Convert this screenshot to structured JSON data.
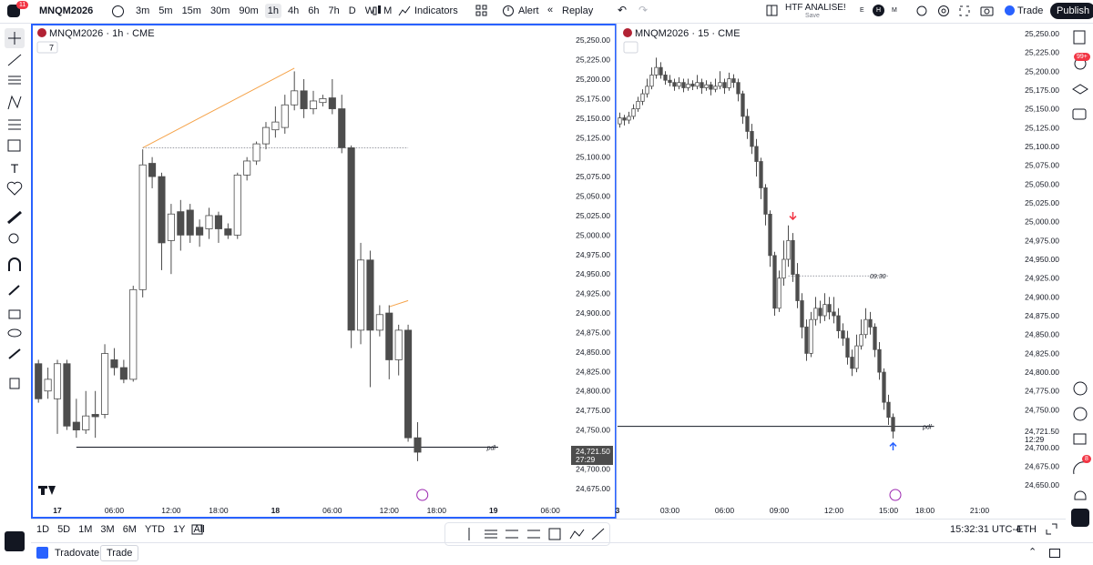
{
  "toolbar": {
    "notifications": "11",
    "symbol": "MNQM2026",
    "intervals": [
      "3m",
      "5m",
      "15m",
      "30m",
      "90m",
      "1h",
      "4h",
      "6h",
      "7h",
      "D",
      "W",
      "M"
    ],
    "selected_interval": "1h",
    "indicators": "Indicators",
    "alert": "Alert",
    "replay": "Replay",
    "layout_name": "HTF ANALISE!",
    "layout_status": "Save",
    "session_letters": [
      "E",
      "H",
      "M"
    ],
    "trade": "Trade",
    "publish": "Publish"
  },
  "sidebar": {
    "badges": [
      "99+",
      "8"
    ]
  },
  "chart_data": [
    {
      "type": "candlestick",
      "title": "MNQM2026 · 1h · CME",
      "button": "7",
      "up_color": "#ffffff",
      "down_color": "#4d4d4d",
      "wick_color": "#4d4d4d",
      "xlim": [
        -0.5,
        56
      ],
      "ylim": [
        24662,
        25270
      ],
      "xticks": [
        {
          "value": 2,
          "label": "17"
        },
        {
          "value": 8,
          "label": "06:00"
        },
        {
          "value": 14,
          "label": "12:00"
        },
        {
          "value": 19,
          "label": "18:00"
        },
        {
          "value": 25,
          "label": "18"
        },
        {
          "value": 31,
          "label": "06:00"
        },
        {
          "value": 37,
          "label": "12:00"
        },
        {
          "value": 42,
          "label": "18:00"
        },
        {
          "value": 48,
          "label": "19"
        },
        {
          "value": 54,
          "label": "06:00"
        }
      ],
      "yticks": [
        {
          "value": 25250,
          "label": "25,250.00"
        },
        {
          "value": 25225,
          "label": "25,225.00"
        },
        {
          "value": 25200,
          "label": "25,200.00"
        },
        {
          "value": 25175,
          "label": "25,175.00"
        },
        {
          "value": 25150,
          "label": "25,150.00"
        },
        {
          "value": 25125,
          "label": "25,125.00"
        },
        {
          "value": 25100,
          "label": "25,100.00"
        },
        {
          "value": 25075,
          "label": "25,075.00"
        },
        {
          "value": 25050,
          "label": "25,050.00"
        },
        {
          "value": 25025,
          "label": "25,025.00"
        },
        {
          "value": 25000,
          "label": "25,000.00"
        },
        {
          "value": 24975,
          "label": "24,975.00"
        },
        {
          "value": 24950,
          "label": "24,950.00"
        },
        {
          "value": 24925,
          "label": "24,925.00"
        },
        {
          "value": 24900,
          "label": "24,900.00"
        },
        {
          "value": 24875,
          "label": "24,875.00"
        },
        {
          "value": 24850,
          "label": "24,850.00"
        },
        {
          "value": 24825,
          "label": "24,825.00"
        },
        {
          "value": 24800,
          "label": "24,800.00"
        },
        {
          "value": 24775,
          "label": "24,775.00"
        },
        {
          "value": 24750,
          "label": "24,750.00"
        },
        {
          "value": 24725,
          "label": "24,725.00"
        },
        {
          "value": 24700,
          "label": "24,700.00"
        },
        {
          "value": 24675,
          "label": "24,675.00"
        }
      ],
      "ohlc": [
        [
          24835,
          24840,
          24785,
          24790
        ],
        [
          24800,
          24830,
          24790,
          24815
        ],
        [
          24790,
          24840,
          24745,
          24835
        ],
        [
          24835,
          24840,
          24750,
          24755
        ],
        [
          24760,
          24790,
          24740,
          24750
        ],
        [
          24750,
          24800,
          24745,
          24768
        ],
        [
          24770,
          24800,
          24740,
          24767
        ],
        [
          24770,
          24860,
          24765,
          24848
        ],
        [
          24840,
          24855,
          24820,
          24830
        ],
        [
          24830,
          24840,
          24810,
          24815
        ],
        [
          24815,
          24935,
          24812,
          24930
        ],
        [
          24930,
          25110,
          24920,
          25090
        ],
        [
          25092,
          25100,
          25060,
          25075
        ],
        [
          25075,
          25080,
          24955,
          24990
        ],
        [
          24993,
          25040,
          24950,
          25027
        ],
        [
          25030,
          25045,
          24980,
          25000
        ],
        [
          25032,
          25040,
          24990,
          25000
        ],
        [
          25010,
          25020,
          24985,
          25000
        ],
        [
          25008,
          25035,
          24995,
          25025
        ],
        [
          25025,
          25030,
          24990,
          25008
        ],
        [
          25008,
          25015,
          24995,
          25000
        ],
        [
          25000,
          25080,
          24995,
          25077
        ],
        [
          25077,
          25100,
          25070,
          25095
        ],
        [
          25095,
          25120,
          25090,
          25117
        ],
        [
          25117,
          25145,
          25110,
          25138
        ],
        [
          25135,
          25165,
          25125,
          25145
        ],
        [
          25138,
          25180,
          25130,
          25167
        ],
        [
          25167,
          25210,
          25160,
          25185
        ],
        [
          25185,
          25200,
          25150,
          25162
        ],
        [
          25162,
          25185,
          25155,
          25172
        ],
        [
          25170,
          25180,
          25165,
          25175
        ],
        [
          25176,
          25200,
          25155,
          25162
        ],
        [
          25162,
          25180,
          25105,
          25112
        ],
        [
          25112,
          25115,
          24855,
          24878
        ],
        [
          24878,
          24990,
          24860,
          24968
        ],
        [
          24968,
          24980,
          24805,
          24878
        ],
        [
          24878,
          24910,
          24870,
          24898
        ],
        [
          24900,
          24910,
          24815,
          24840
        ],
        [
          24840,
          24885,
          24820,
          24878
        ],
        [
          24878,
          24885,
          24735,
          24740
        ],
        [
          24740,
          24760,
          24710,
          24721.5
        ]
      ],
      "lines": [
        {
          "style": "solid",
          "color": "#f5a34a",
          "x": [
            11,
            27
          ],
          "y": [
            25112,
            25214
          ]
        },
        {
          "style": "solid",
          "color": "#f5a34a",
          "x": [
            37,
            39
          ],
          "y": [
            24908,
            24916
          ]
        },
        {
          "style": "dotted",
          "color": "#787b86",
          "x": [
            11,
            39
          ],
          "y": [
            25112,
            25112
          ]
        },
        {
          "style": "solid",
          "color": "#131722",
          "x": [
            4,
            48.5
          ],
          "y": [
            24728,
            24728
          ],
          "label": "pdl"
        }
      ],
      "last_price": {
        "value": 24721.5,
        "label": "24,721.50"
      },
      "countdown": "27:29"
    },
    {
      "type": "candlestick",
      "title": "MNQM2026 · 15 · CME",
      "up_color": "#ffffff",
      "down_color": "#4d4d4d",
      "wick_color": "#4d4d4d",
      "xlim": [
        -0.5,
        87.5
      ],
      "ylim": [
        24632,
        25262
      ],
      "xticks": [
        {
          "value": -0.5,
          "label": "3"
        },
        {
          "value": 11,
          "label": "03:00"
        },
        {
          "value": 23,
          "label": "06:00"
        },
        {
          "value": 35,
          "label": "09:00"
        },
        {
          "value": 47,
          "label": "12:00"
        },
        {
          "value": 59,
          "label": "15:00"
        },
        {
          "value": 67,
          "label": "18:00"
        },
        {
          "value": 79,
          "label": "21:00"
        }
      ],
      "yticks": [
        {
          "value": 25250,
          "label": "25,250.00"
        },
        {
          "value": 25225,
          "label": "25,225.00"
        },
        {
          "value": 25200,
          "label": "25,200.00"
        },
        {
          "value": 25175,
          "label": "25,175.00"
        },
        {
          "value": 25150,
          "label": "25,150.00"
        },
        {
          "value": 25125,
          "label": "25,125.00"
        },
        {
          "value": 25100,
          "label": "25,100.00"
        },
        {
          "value": 25075,
          "label": "25,075.00"
        },
        {
          "value": 25050,
          "label": "25,050.00"
        },
        {
          "value": 25025,
          "label": "25,025.00"
        },
        {
          "value": 25000,
          "label": "25,000.00"
        },
        {
          "value": 24975,
          "label": "24,975.00"
        },
        {
          "value": 24950,
          "label": "24,950.00"
        },
        {
          "value": 24925,
          "label": "24,925.00"
        },
        {
          "value": 24900,
          "label": "24,900.00"
        },
        {
          "value": 24875,
          "label": "24,875.00"
        },
        {
          "value": 24850,
          "label": "24,850.00"
        },
        {
          "value": 24825,
          "label": "24,825.00"
        },
        {
          "value": 24800,
          "label": "24,800.00"
        },
        {
          "value": 24775,
          "label": "24,775.00"
        },
        {
          "value": 24750,
          "label": "24,750.00"
        },
        {
          "value": 24700,
          "label": "24,700.00"
        },
        {
          "value": 24675,
          "label": "24,675.00"
        },
        {
          "value": 24650,
          "label": "24,650.00"
        }
      ],
      "ohlc": [
        [
          25130,
          25145,
          25125,
          25138
        ],
        [
          25138,
          25142,
          25128,
          25135
        ],
        [
          25135,
          25146,
          25130,
          25140
        ],
        [
          25140,
          25156,
          25136,
          25150
        ],
        [
          25150,
          25166,
          25146,
          25160
        ],
        [
          25160,
          25176,
          25155,
          25170
        ],
        [
          25170,
          25190,
          25165,
          25180
        ],
        [
          25180,
          25205,
          25176,
          25195
        ],
        [
          25195,
          25218,
          25190,
          25205
        ],
        [
          25205,
          25212,
          25190,
          25195
        ],
        [
          25195,
          25200,
          25182,
          25188
        ],
        [
          25188,
          25195,
          25180,
          25185
        ],
        [
          25185,
          25190,
          25174,
          25180
        ],
        [
          25180,
          25192,
          25176,
          25185
        ],
        [
          25185,
          25190,
          25172,
          25178
        ],
        [
          25178,
          25190,
          25174,
          25183
        ],
        [
          25183,
          25188,
          25175,
          25180
        ],
        [
          25180,
          25195,
          25176,
          25185
        ],
        [
          25185,
          25190,
          25170,
          25178
        ],
        [
          25178,
          25188,
          25174,
          25182
        ],
        [
          25182,
          25186,
          25168,
          25176
        ],
        [
          25176,
          25190,
          25172,
          25180
        ],
        [
          25180,
          25200,
          25176,
          25185
        ],
        [
          25185,
          25190,
          25170,
          25178
        ],
        [
          25178,
          25198,
          25174,
          25190
        ],
        [
          25190,
          25196,
          25178,
          25185
        ],
        [
          25185,
          25190,
          25160,
          25170
        ],
        [
          25170,
          25174,
          25130,
          25140
        ],
        [
          25140,
          25150,
          25110,
          25120
        ],
        [
          25120,
          25130,
          25090,
          25100
        ],
        [
          25100,
          25110,
          25060,
          25080
        ],
        [
          25080,
          25085,
          25030,
          25045
        ],
        [
          25045,
          25050,
          24995,
          25010
        ],
        [
          25010,
          25015,
          24940,
          24955
        ],
        [
          24955,
          24960,
          24875,
          24885
        ],
        [
          24885,
          24935,
          24880,
          24925
        ],
        [
          24925,
          24975,
          24915,
          24950
        ],
        [
          24950,
          24995,
          24940,
          24975
        ],
        [
          24975,
          24985,
          24920,
          24930
        ],
        [
          24930,
          24945,
          24885,
          24895
        ],
        [
          24895,
          24905,
          24845,
          24860
        ],
        [
          24860,
          24870,
          24815,
          24825
        ],
        [
          24825,
          24880,
          24820,
          24870
        ],
        [
          24870,
          24900,
          24862,
          24885
        ],
        [
          24885,
          24895,
          24865,
          24875
        ],
        [
          24875,
          24905,
          24868,
          24890
        ],
        [
          24890,
          24900,
          24870,
          24880
        ],
        [
          24880,
          24900,
          24865,
          24875
        ],
        [
          24875,
          24885,
          24845,
          24855
        ],
        [
          24855,
          24865,
          24835,
          24845
        ],
        [
          24845,
          24855,
          24810,
          24820
        ],
        [
          24820,
          24830,
          24795,
          24805
        ],
        [
          24805,
          24850,
          24800,
          24835
        ],
        [
          24835,
          24870,
          24830,
          24850
        ],
        [
          24850,
          24885,
          24845,
          24870
        ],
        [
          24870,
          24880,
          24850,
          24860
        ],
        [
          24860,
          24865,
          24820,
          24830
        ],
        [
          24830,
          24840,
          24790,
          24800
        ],
        [
          24800,
          24805,
          24750,
          24760
        ],
        [
          24760,
          24770,
          24730,
          24740
        ],
        [
          24740,
          24745,
          24712,
          24721.5
        ]
      ],
      "lines": [
        {
          "style": "solid",
          "color": "#131722",
          "x": [
            -0.5,
            69
          ],
          "y": [
            24728,
            24728
          ],
          "label": "pdl"
        },
        {
          "style": "dotted",
          "color": "#787b86",
          "x": [
            37,
            59
          ],
          "y": [
            24928,
            24928
          ],
          "label": "09:30"
        }
      ],
      "arrows": [
        {
          "direction": "down",
          "color": "#f23645",
          "x": 38,
          "y": 25008
        },
        {
          "direction": "up",
          "color": "#2962ff",
          "x": 60,
          "y": 24701
        }
      ],
      "last_price": {
        "value": 24721.5,
        "label": "24,721.50"
      },
      "countdown": "12:29"
    }
  ],
  "bottom_bar": {
    "ranges": [
      "1D",
      "5D",
      "1M",
      "3M",
      "6M",
      "YTD",
      "1Y",
      "All"
    ],
    "clock": "15:32:31 UTC-4",
    "session": "ETH"
  },
  "footer": {
    "tabs": [
      "Tradovate",
      "Trade"
    ]
  }
}
